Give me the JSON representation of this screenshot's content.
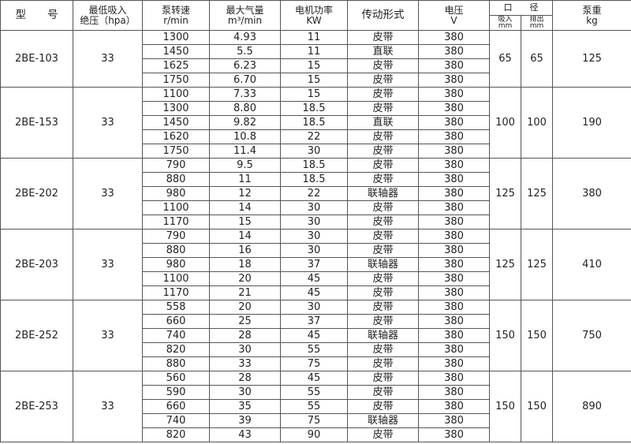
{
  "header": {
    "model": "型　　号",
    "vacuum": "最低吸入",
    "vacuum_unit": "绝压（hpa）",
    "speed": "泵转速",
    "speed_unit": "r/min",
    "flow": "最大气量",
    "flow_unit": "m³/min",
    "power": "电机功率",
    "power_unit": "KW",
    "drive": "传动形式",
    "voltage": "电压",
    "voltage_unit": "V",
    "diameter": "口　　径",
    "inlet": "吸入",
    "outlet": "排出",
    "diameter_unit": "mm",
    "weight": "泵重",
    "weight_unit": "kg"
  },
  "groups": [
    {
      "model": "2BE-103",
      "vacuum": "33",
      "inlet": "65",
      "outlet": "65",
      "weight": "125",
      "rows": [
        [
          "1300",
          "4.93",
          "11",
          "皮带",
          "380"
        ],
        [
          "1450",
          "5.5",
          "11",
          "直联",
          "380"
        ],
        [
          "1625",
          "6.23",
          "15",
          "皮带",
          "380"
        ],
        [
          "1750",
          "6.70",
          "15",
          "皮带",
          "380"
        ]
      ]
    },
    {
      "model": "2BE-153",
      "vacuum": "33",
      "inlet": "100",
      "outlet": "100",
      "weight": "190",
      "rows": [
        [
          "1100",
          "7.33",
          "15",
          "皮带",
          "380"
        ],
        [
          "1300",
          "8.80",
          "18.5",
          "皮带",
          "380"
        ],
        [
          "1450",
          "9.82",
          "18.5",
          "直联",
          "380"
        ],
        [
          "1620",
          "10.8",
          "22",
          "皮带",
          "380"
        ],
        [
          "1750",
          "11.4",
          "30",
          "皮带",
          "380"
        ]
      ]
    },
    {
      "model": "2BE-202",
      "vacuum": "33",
      "inlet": "125",
      "outlet": "125",
      "weight": "380",
      "rows": [
        [
          "790",
          "9.5",
          "18.5",
          "皮带",
          "380"
        ],
        [
          "880",
          "11",
          "18.5",
          "皮带",
          "380"
        ],
        [
          "980",
          "12",
          "22",
          "联轴器",
          "380"
        ],
        [
          "1100",
          "14",
          "30",
          "皮带",
          "380"
        ],
        [
          "1170",
          "15",
          "30",
          "皮带",
          "380"
        ]
      ]
    },
    {
      "model": "2BE-203",
      "vacuum": "33",
      "inlet": "125",
      "outlet": "125",
      "weight": "410",
      "rows": [
        [
          "790",
          "14",
          "30",
          "皮带",
          "380"
        ],
        [
          "880",
          "16",
          "30",
          "皮带",
          "380"
        ],
        [
          "980",
          "18",
          "37",
          "联轴器",
          "380"
        ],
        [
          "1100",
          "20",
          "45",
          "皮带",
          "380"
        ],
        [
          "1170",
          "21",
          "45",
          "皮带",
          "380"
        ]
      ]
    },
    {
      "model": "2BE-252",
      "vacuum": "33",
      "inlet": "150",
      "outlet": "150",
      "weight": "750",
      "rows": [
        [
          "558",
          "20",
          "30",
          "皮带",
          "380"
        ],
        [
          "660",
          "25",
          "37",
          "皮带",
          "380"
        ],
        [
          "740",
          "28",
          "45",
          "联轴器",
          "380"
        ],
        [
          "820",
          "30",
          "55",
          "皮带",
          "380"
        ],
        [
          "880",
          "33",
          "75",
          "皮带",
          "380"
        ]
      ]
    },
    {
      "model": "2BE-253",
      "vacuum": "33",
      "inlet": "150",
      "outlet": "150",
      "weight": "890",
      "rows": [
        [
          "560",
          "28",
          "45",
          "皮带",
          "380"
        ],
        [
          "590",
          "30",
          "55",
          "皮带",
          "380"
        ],
        [
          "660",
          "35",
          "55",
          "皮带",
          "380"
        ],
        [
          "740",
          "39",
          "75",
          "联轴器",
          "380"
        ],
        [
          "820",
          "43",
          "90",
          "皮带",
          "380"
        ]
      ]
    }
  ]
}
